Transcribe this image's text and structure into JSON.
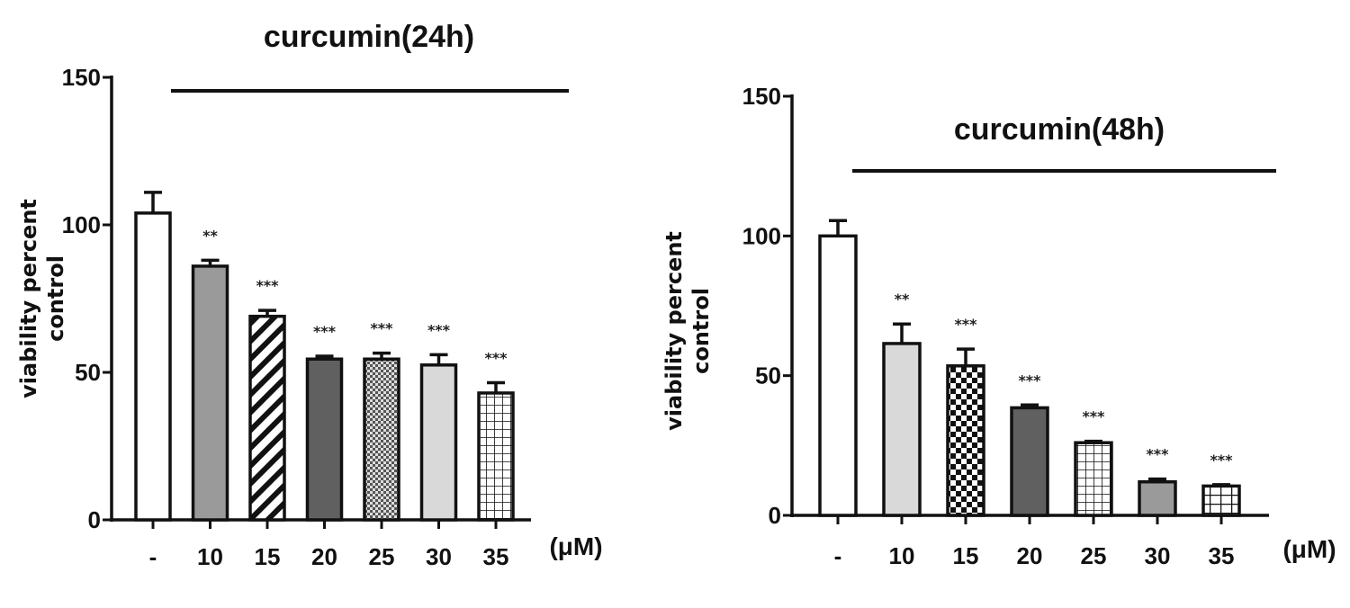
{
  "chart_data": [
    {
      "type": "bar",
      "title": "curcumin(24h)",
      "ylabel": [
        "viability percent",
        "control"
      ],
      "xunit": "(μM)",
      "categories": [
        "-",
        "10",
        "15",
        "20",
        "25",
        "30",
        "35"
      ],
      "values": [
        104,
        86,
        69,
        54.5,
        54.5,
        52.5,
        43
      ],
      "errors": [
        7,
        2,
        2,
        1,
        2,
        3.5,
        3.5
      ],
      "significance": [
        "",
        "**",
        "***",
        "***",
        "***",
        "***",
        "***"
      ],
      "patterns": [
        "white",
        "gray",
        "diagonal",
        "darkgray",
        "checker-fine",
        "lightgray",
        "grid"
      ],
      "ylim": [
        0,
        150
      ],
      "yticks": [
        0,
        50,
        100,
        150
      ]
    },
    {
      "type": "bar",
      "title": "curcumin(48h)",
      "ylabel": [
        "viability percent",
        "control"
      ],
      "xunit": "(μM)",
      "categories": [
        "-",
        "10",
        "15",
        "20",
        "25",
        "30",
        "35"
      ],
      "values": [
        100,
        61.5,
        53.5,
        38.5,
        26,
        12,
        10.5
      ],
      "errors": [
        5.5,
        7,
        6,
        1,
        0.5,
        1,
        0.5
      ],
      "significance": [
        "",
        "**",
        "***",
        "***",
        "***",
        "***",
        "***"
      ],
      "patterns": [
        "white",
        "lightgray",
        "checker",
        "darkgray",
        "grid",
        "gray",
        "grid-coarse"
      ],
      "ylim": [
        0,
        150
      ],
      "yticks": [
        0,
        50,
        100,
        150
      ]
    }
  ]
}
